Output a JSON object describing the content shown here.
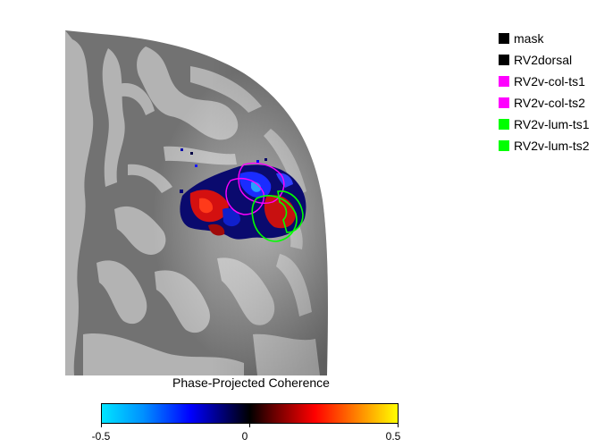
{
  "legend": [
    {
      "label": "mask",
      "color": "#000000"
    },
    {
      "label": "RV2dorsal",
      "color": "#000000"
    },
    {
      "label": "RV2v-col-ts1",
      "color": "#ff00ff"
    },
    {
      "label": "RV2v-col-ts2",
      "color": "#ff00ff"
    },
    {
      "label": "RV2v-lum-ts1",
      "color": "#00ff00"
    },
    {
      "label": "RV2v-lum-ts2",
      "color": "#00ff00"
    }
  ],
  "colorbar": {
    "title": "Phase-Projected Coherence",
    "min_label": "-0.5",
    "mid_label": "0",
    "max_label": "0.5",
    "colormap": [
      "#00e5ff",
      "#0000ff",
      "#000000",
      "#ff0000",
      "#ffff00"
    ]
  },
  "image": {
    "subject": "inflated cortical surface with phase-projected coherence overlay",
    "surface_colors": {
      "gyri": "#b4b4b4",
      "sulci": "#737373"
    }
  }
}
